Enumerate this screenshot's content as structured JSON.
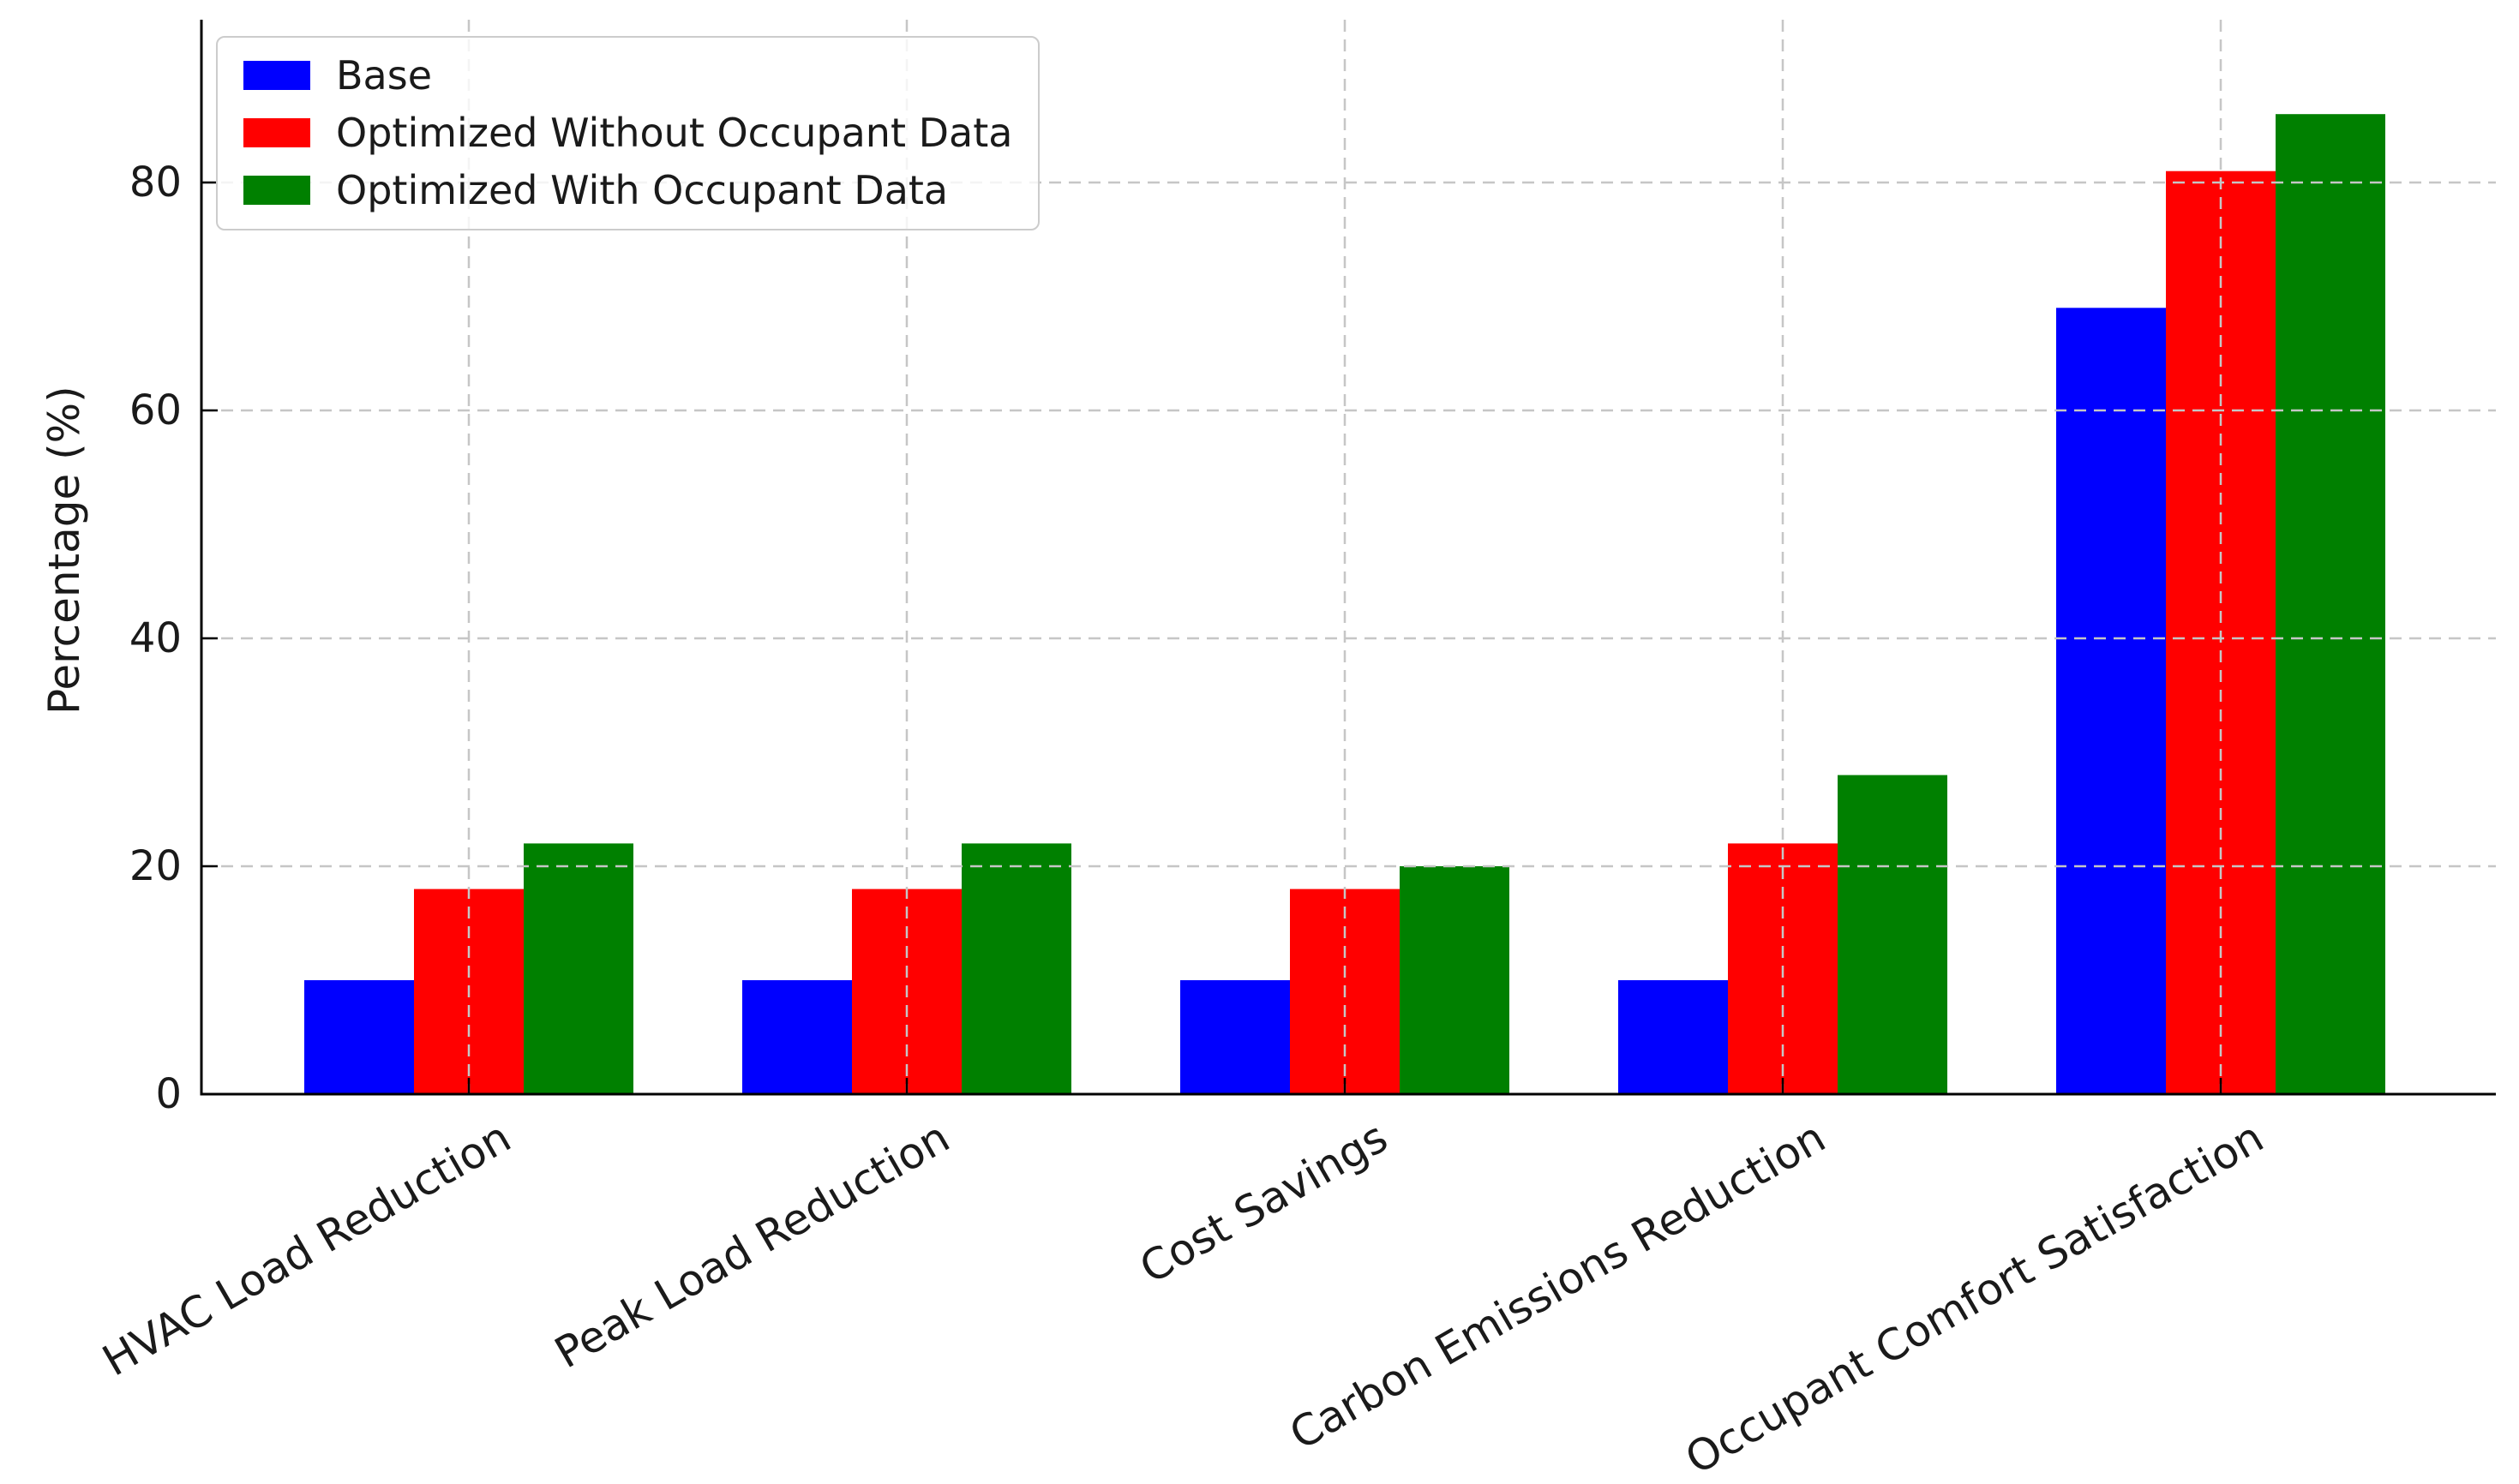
{
  "chart_data": {
    "type": "bar",
    "title": "",
    "categories": [
      "HVAC Load Reduction",
      "Peak Load Reduction",
      "Cost Savings",
      "Carbon Emissions Reduction",
      "Occupant Comfort Satisfaction"
    ],
    "series": [
      {
        "name": "Base",
        "color": "#0000ff",
        "values": [
          10,
          10,
          10,
          10,
          69
        ]
      },
      {
        "name": "Optimized Without Occupant Data",
        "color": "#ff0000",
        "values": [
          18,
          18,
          18,
          22,
          81
        ]
      },
      {
        "name": "Optimized With Occupant Data",
        "color": "#008000",
        "values": [
          22,
          22,
          20,
          28,
          86
        ]
      }
    ],
    "xlabel": "",
    "ylabel": "Percentage (%)",
    "yticks": [
      0,
      20,
      40,
      60,
      80
    ],
    "ylim": [
      0,
      94
    ],
    "grid": "dashed, both axes, drawn above bars",
    "legend_position": "upper left",
    "xticklabel_rotation_deg": 30
  },
  "colors": {
    "background": "#ffffff",
    "grid": "#c6c6c6",
    "spine": "#000000",
    "text": "#1a1a1a",
    "legend_border": "#cccccc"
  }
}
